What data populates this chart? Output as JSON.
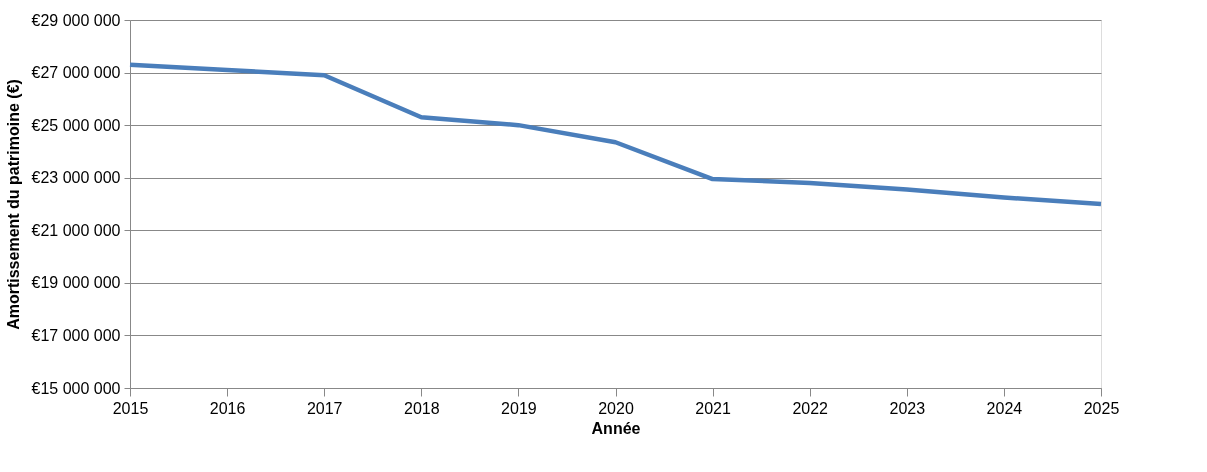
{
  "chart_data": {
    "type": "line",
    "xlabel": "Année",
    "ylabel": "Amortissement du patrimoine (€)",
    "x": [
      2015,
      2016,
      2017,
      2018,
      2019,
      2020,
      2021,
      2022,
      2023,
      2024,
      2025
    ],
    "series": [
      {
        "color": "#4a7ebb",
        "values": [
          27300000,
          27100000,
          26900000,
          25300000,
          25000000,
          24350000,
          22950000,
          22800000,
          22550000,
          22250000,
          22000000
        ]
      }
    ],
    "xlim": [
      2015,
      2025
    ],
    "xticks": [
      2015,
      2016,
      2017,
      2018,
      2019,
      2020,
      2021,
      2022,
      2023,
      2024,
      2025
    ],
    "ylim": [
      15000000,
      29000000
    ],
    "yticks": [
      {
        "value": 15000000,
        "label": "€15 000 000"
      },
      {
        "value": 17000000,
        "label": "€17 000 000"
      },
      {
        "value": 19000000,
        "label": "€19 000 000"
      },
      {
        "value": 21000000,
        "label": "€21 000 000"
      },
      {
        "value": 23000000,
        "label": "€23 000 000"
      },
      {
        "value": 25000000,
        "label": "€25 000 000"
      },
      {
        "value": 27000000,
        "label": "€27 000 000"
      },
      {
        "value": 29000000,
        "label": "€29 000 000"
      }
    ],
    "grid": "y",
    "legend": false,
    "marker": "none",
    "line_style": "solid"
  }
}
